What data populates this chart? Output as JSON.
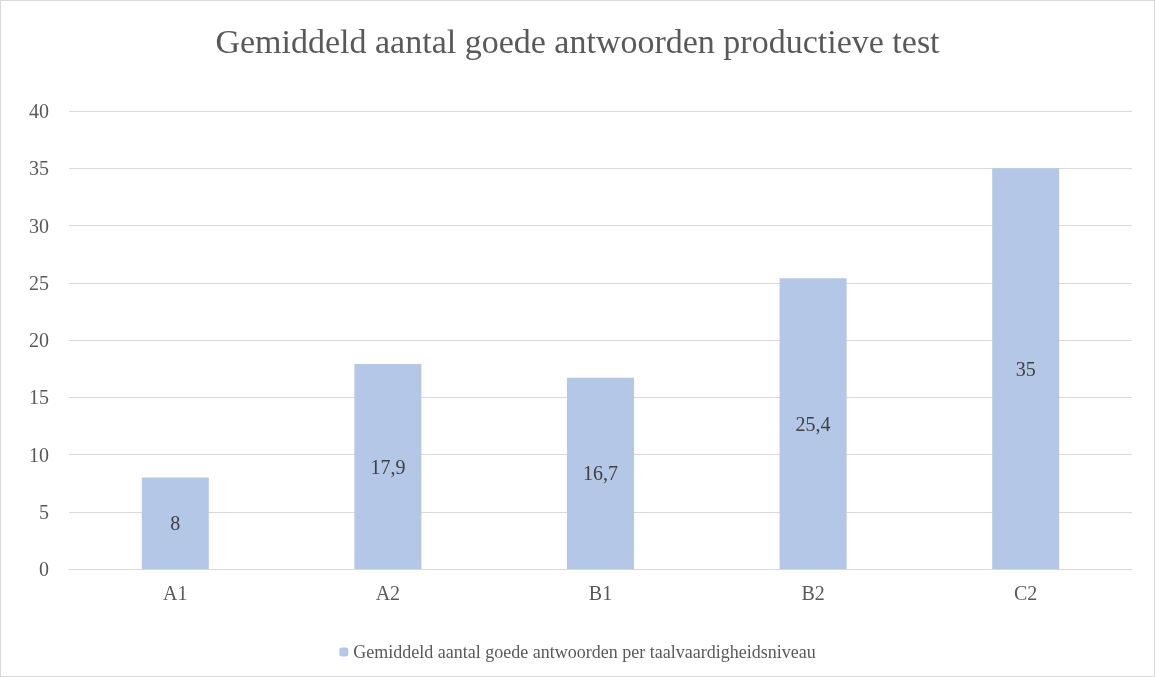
{
  "chart_data": {
    "type": "bar",
    "title": "Gemiddeld aantal goede antwoorden productieve test",
    "categories": [
      "A1",
      "A2",
      "B1",
      "B2",
      "C2"
    ],
    "series": [
      {
        "name": "Gemiddeld aantal goede antwoorden per taalvaardigheidsniveau",
        "color": "#b4c7e7",
        "values": [
          8,
          17.9,
          16.7,
          25.4,
          35
        ],
        "value_labels": [
          "8",
          "17,9",
          "16,7",
          "25,4",
          "35"
        ]
      }
    ],
    "ylim": [
      0,
      40
    ],
    "yticks": [
      0,
      5,
      10,
      15,
      20,
      25,
      30,
      35,
      40
    ],
    "grid": "y",
    "legend": "bottom"
  }
}
